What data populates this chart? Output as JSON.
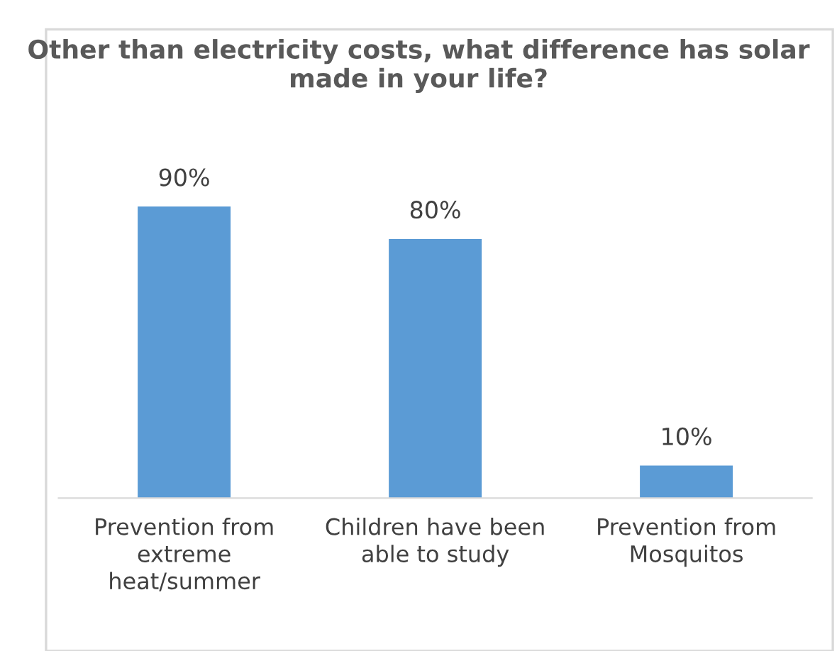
{
  "chart_data": {
    "type": "bar",
    "title": "Other than electricity costs, what difference has solar made in your life?",
    "categories": [
      "Prevention from extreme heat/summer",
      "Children have been able to study",
      "Prevention from Mosquitos"
    ],
    "values": [
      90,
      80,
      10
    ],
    "value_labels": [
      "90%",
      "80%",
      "10%"
    ],
    "color": "#5b9bd5",
    "grid": false,
    "legend": false
  }
}
